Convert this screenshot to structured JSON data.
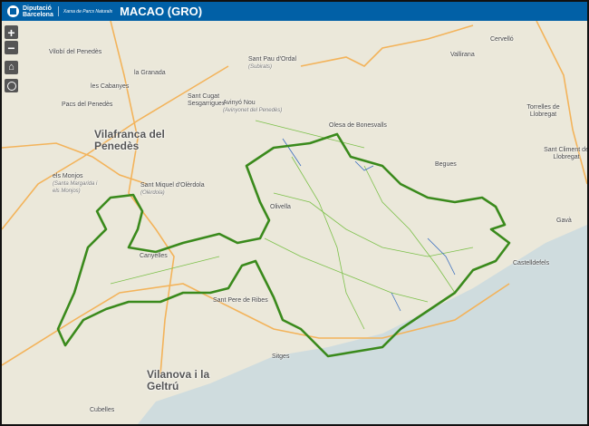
{
  "header": {
    "org_line1": "Diputació",
    "org_line2": "Barcelona",
    "network": "Xarxa de Parcs Naturals",
    "title": "MACAO (GRO)"
  },
  "controls": {
    "zoom_in": "+",
    "zoom_out": "−",
    "home_icon": "home-icon",
    "locate_icon": "locate-circle-icon"
  },
  "colors": {
    "header": "#0160a6",
    "park_boundary": "#3a8a1c",
    "trails": "#7cc04a",
    "rivers": "#3a6ec0",
    "roads": "#f3b35a",
    "sea": "#cfdcde",
    "land": "#ebe8da"
  },
  "places": [
    {
      "name": "Vilobí del Penedès"
    },
    {
      "name": "la Granada"
    },
    {
      "name": "les Cabanyes"
    },
    {
      "name": "Pacs del Penedès"
    },
    {
      "name": "Sant Pau d'Ordal",
      "sub": "(Subirats)"
    },
    {
      "name": "Sant Cugat Sesgarrigues"
    },
    {
      "name": "Avinyó Nou",
      "sub": "(Avinyonet del Penedès)"
    },
    {
      "name": "Vilafranca del Penedès"
    },
    {
      "name": "els Monjos",
      "sub": "(Santa Margarida i els Monjos)"
    },
    {
      "name": "Sant Miquel d'Olèrdola",
      "sub": "(Olèrdola)"
    },
    {
      "name": "Canyelles"
    },
    {
      "name": "Olivella"
    },
    {
      "name": "Sant Pere de Ribes"
    },
    {
      "name": "Olesa de Bonesvalls"
    },
    {
      "name": "Begues"
    },
    {
      "name": "Cervelló"
    },
    {
      "name": "Vallirana"
    },
    {
      "name": "Torrelles de Llobregat"
    },
    {
      "name": "Sant Climent de Llobregat"
    },
    {
      "name": "Gavà"
    },
    {
      "name": "Castelldefels"
    },
    {
      "name": "Sitges"
    },
    {
      "name": "Vilanova i la Geltrú"
    },
    {
      "name": "Cubelles"
    }
  ]
}
